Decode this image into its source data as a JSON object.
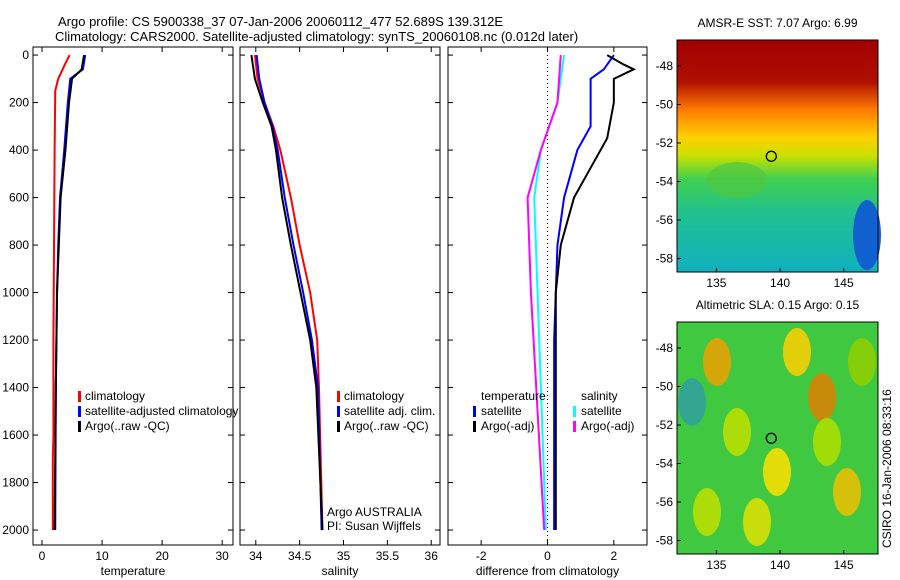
{
  "title_line1": "Argo profile: CS 5900338_37 07-Jan-2006 20060112_477 52.689S 139.312E",
  "title_line2": "Climatology: CARS2000. Satellite-adjusted climatology: synTS_20060108.nc (0.012d later)",
  "side_stamp": "CSIRO 16-Jan-2006 08:33:16",
  "colors": {
    "red": "#ff0000",
    "blue": "#0000ff",
    "black": "#000000",
    "cyan": "#00ffff",
    "magenta": "#ff00ff"
  },
  "chart_data": [
    {
      "type": "line",
      "name": "temperature",
      "xlabel": "temperature",
      "ylabel": "",
      "xlim": [
        -1.5,
        31.8
      ],
      "ylim": [
        -34,
        2063
      ],
      "y_reversed": true,
      "xticks": [
        0,
        10,
        20,
        30
      ],
      "yticks": [
        0,
        200,
        400,
        600,
        800,
        1000,
        1200,
        1400,
        1600,
        1800,
        2000
      ],
      "legend": [
        "climatology",
        "satellite-adjusted climatology",
        "Argo(..raw -QC)"
      ],
      "series": [
        {
          "name": "climatology",
          "color": "red",
          "depth": [
            0,
            40,
            100,
            150,
            400,
            800,
            1200,
            1600,
            1700,
            1800,
            2000
          ],
          "values": [
            4.6,
            3.8,
            2.7,
            2.2,
            2.1,
            2.0,
            1.9,
            1.9,
            1.8,
            1.8,
            1.8
          ]
        },
        {
          "name": "satellite-adjusted climatology",
          "color": "blue",
          "depth": [
            0,
            60,
            100,
            200,
            400,
            600,
            800,
            1000,
            1400,
            2000
          ],
          "values": [
            7.2,
            6.8,
            4.7,
            4.3,
            3.7,
            3.0,
            2.7,
            2.5,
            2.3,
            2.2
          ]
        },
        {
          "name": "Argo(..raw -QC)",
          "color": "black",
          "depth": [
            0,
            60,
            100,
            200,
            400,
            600,
            800,
            1000,
            1400,
            2000
          ],
          "values": [
            7.0,
            6.6,
            5.0,
            4.5,
            3.9,
            3.1,
            2.8,
            2.5,
            2.3,
            2.1
          ]
        }
      ]
    },
    {
      "type": "line",
      "name": "salinity",
      "xlabel": "salinity",
      "xlim": [
        33.82,
        36.1
      ],
      "ylim": [
        -34,
        2063
      ],
      "y_reversed": true,
      "xticks": [
        34,
        34.5,
        35,
        35.5,
        36
      ],
      "legend": [
        "climatology",
        "satellite adj. clim.",
        "Argo(..raw -QC)"
      ],
      "annotation": [
        "Argo AUSTRALIA",
        "PI: Susan Wijffels"
      ],
      "series": [
        {
          "name": "climatology",
          "color": "red",
          "depth": [
            0,
            100,
            200,
            300,
            400,
            600,
            800,
            1000,
            1200,
            1400,
            2000
          ],
          "values": [
            33.99,
            34.02,
            34.1,
            34.2,
            34.28,
            34.4,
            34.5,
            34.62,
            34.7,
            34.72,
            34.76
          ]
        },
        {
          "name": "satellite adj. clim.",
          "color": "blue",
          "depth": [
            0,
            100,
            200,
            300,
            400,
            600,
            800,
            1000,
            1200,
            1400,
            2000
          ],
          "values": [
            34.01,
            34.04,
            34.1,
            34.19,
            34.25,
            34.33,
            34.43,
            34.54,
            34.64,
            34.71,
            34.75
          ]
        },
        {
          "name": "Argo(..raw -QC)",
          "color": "black",
          "depth": [
            0,
            100,
            200,
            300,
            400,
            600,
            800,
            1000,
            1200,
            1400,
            2000
          ],
          "values": [
            33.95,
            33.99,
            34.08,
            34.18,
            34.23,
            34.3,
            34.4,
            34.51,
            34.62,
            34.69,
            34.76
          ]
        }
      ]
    },
    {
      "type": "line",
      "name": "difference",
      "xlabel": "difference from climatology",
      "xlim": [
        -3,
        3
      ],
      "ylim": [
        -34,
        2063
      ],
      "y_reversed": true,
      "xticks": [
        -2,
        0,
        2
      ],
      "legend_groups": [
        {
          "title": "temperature",
          "items": [
            "satellite",
            "Argo(-adj)"
          ]
        },
        {
          "title": "salinity",
          "items": [
            "satellite",
            "Argo(-adj)"
          ]
        }
      ],
      "series": [
        {
          "name": "temperature satellite",
          "color": "blue",
          "depth": [
            0,
            60,
            100,
            300,
            400,
            500,
            600,
            800,
            1200,
            2000
          ],
          "values": [
            2.0,
            1.7,
            1.3,
            1.3,
            0.9,
            0.7,
            0.5,
            0.3,
            0.2,
            0.2
          ]
        },
        {
          "name": "temperature Argo(-adj)",
          "color": "black",
          "depth": [
            0,
            40,
            60,
            100,
            200,
            350,
            400,
            500,
            600,
            800,
            1000,
            2000
          ],
          "values": [
            1.8,
            2.3,
            2.6,
            2.0,
            2.0,
            1.8,
            1.6,
            1.2,
            0.8,
            0.4,
            0.25,
            0.25
          ]
        },
        {
          "name": "salinity satellite",
          "color": "cyan",
          "depth": [
            0,
            100,
            200,
            400,
            600,
            800,
            1200,
            2000
          ],
          "values": [
            0.5,
            0.4,
            0.3,
            -0.2,
            -0.4,
            -0.35,
            -0.25,
            -0.05
          ]
        },
        {
          "name": "salinity Argo(-adj)",
          "color": "magenta",
          "depth": [
            0,
            100,
            200,
            400,
            600,
            1000,
            1500,
            2000
          ],
          "values": [
            0.4,
            0.35,
            0.3,
            -0.2,
            -0.6,
            -0.5,
            -0.3,
            -0.1
          ]
        }
      ]
    },
    {
      "type": "heatmap",
      "name": "sst-map",
      "title": "AMSR-E SST: 7.07 Argo: 6.99",
      "xlim": [
        131.9,
        147.7
      ],
      "ylim": [
        -58.7,
        -46.65
      ],
      "xticks": [
        135,
        140,
        145
      ],
      "yticks": [
        -48,
        -50,
        -52,
        -54,
        -56,
        -58
      ],
      "marker": [
        139.312,
        -52.689
      ]
    },
    {
      "type": "heatmap",
      "name": "sla-map",
      "title": "Altimetric SLA: 0.15 Argo: 0.15",
      "xlim": [
        131.9,
        147.7
      ],
      "ylim": [
        -58.7,
        -46.65
      ],
      "xticks": [
        135,
        140,
        145
      ],
      "yticks": [
        -48,
        -50,
        -52,
        -54,
        -56,
        -58
      ],
      "marker": [
        139.312,
        -52.689
      ]
    }
  ]
}
